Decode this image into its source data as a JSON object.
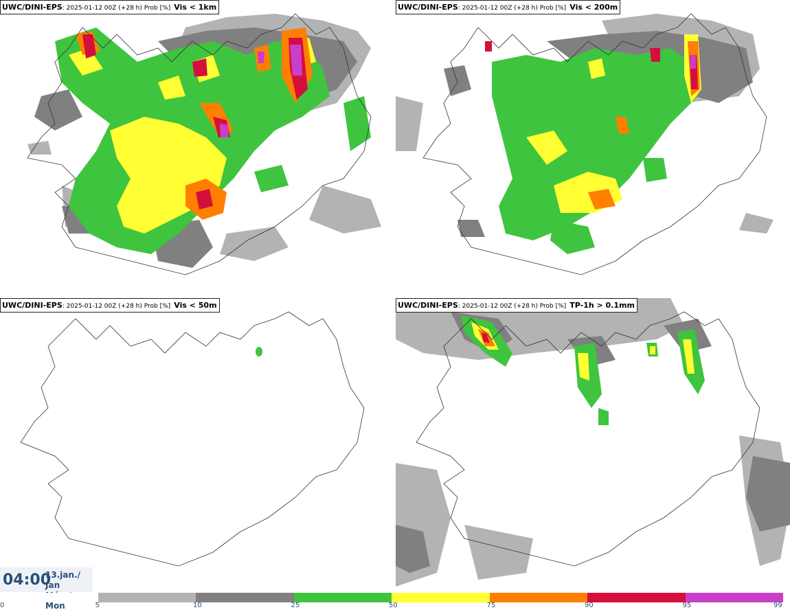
{
  "panels": [
    {
      "model": "UWC/DINI-EPS",
      "run": ": 2025-01-12 00Z (+28 h) Prob [%]",
      "variable": "Vis < 1km"
    },
    {
      "model": "UWC/DINI-EPS",
      "run": ": 2025-01-12 00Z (+28 h) Prob [%]",
      "variable": "Vis < 200m"
    },
    {
      "model": "UWC/DINI-EPS",
      "run": ": 2025-01-12 00Z (+28 h) Prob [%]",
      "variable": "Vis < 50m"
    },
    {
      "model": "UWC/DINI-EPS",
      "run": ": 2025-01-12 00Z (+28 h) Prob [%]",
      "variable": "TP-1h > 0.1mm"
    }
  ],
  "valid_time": {
    "time": "04:00",
    "date_line1": "13.jan./ Jan",
    "date_line2": "Mán./ Mon"
  },
  "color_scale": {
    "ticks": [
      "0",
      "5",
      "10",
      "25",
      "50",
      "75",
      "90",
      "95",
      "99"
    ],
    "colors": [
      "#ffffff",
      "#b3b3b3",
      "#808080",
      "#3fc43f",
      "#ffff33",
      "#ff7f00",
      "#d40f3e",
      "#c93fc9",
      "#f5c8f0"
    ]
  }
}
